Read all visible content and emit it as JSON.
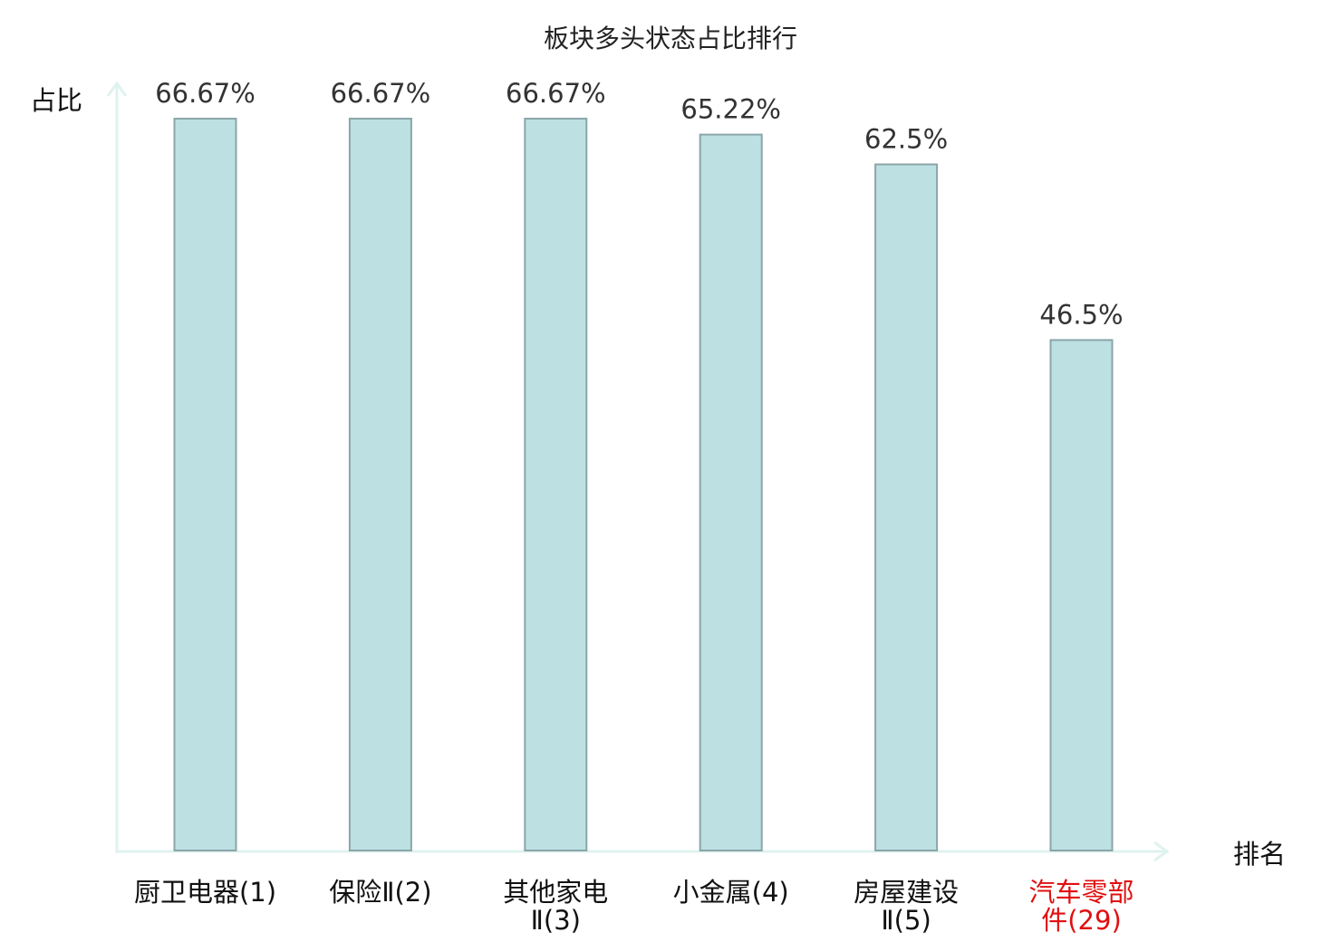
{
  "chart_data": {
    "type": "bar",
    "title": "板块多头状态占比排行",
    "xlabel": "排名",
    "ylabel": "占比",
    "categories": [
      [
        "厨卫电器(1)"
      ],
      [
        "保险Ⅱ(2)"
      ],
      [
        "其他家电",
        "Ⅱ(3)"
      ],
      [
        "小金属(4)"
      ],
      [
        "房屋建设",
        "Ⅱ(5)"
      ],
      [
        "汽车零部",
        "件(29)"
      ]
    ],
    "values": [
      66.67,
      66.67,
      66.67,
      65.22,
      62.5,
      46.5
    ],
    "value_labels": [
      "66.67%",
      "66.67%",
      "66.67%",
      "65.22%",
      "62.5%",
      "46.5%"
    ],
    "highlight_index": 5,
    "ylim": [
      0,
      66.67
    ],
    "grid": false,
    "colors": {
      "bar_fill": "#bde0e3",
      "bar_stroke": "#8aa6a9",
      "axis": "#e0f2ef",
      "label_text": "#111111",
      "value_text": "#333333",
      "highlight_text": "#e01010"
    }
  }
}
